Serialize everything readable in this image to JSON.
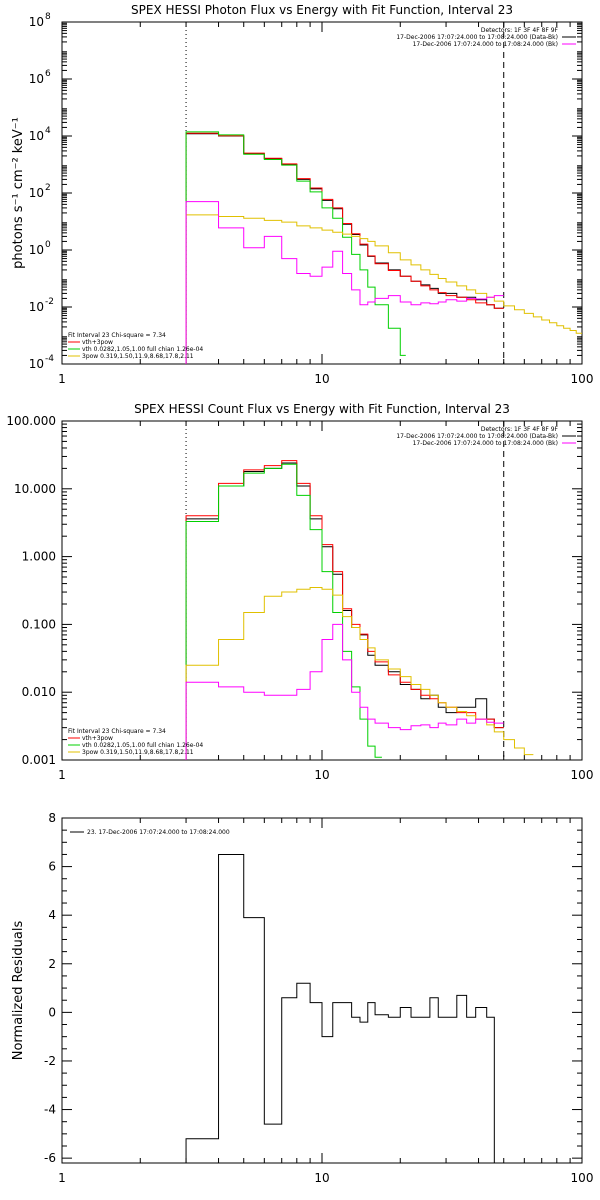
{
  "chart_data": [
    {
      "type": "line",
      "title": "SPEX HESSI Photon Flux vs Energy with Fit Function, Interval 23",
      "xlabel": "",
      "ylabel": "photons s⁻¹ cm⁻² keV⁻¹",
      "xscale": "log",
      "yscale": "log",
      "xlim": [
        1,
        100
      ],
      "ylim": [
        0.0001,
        100000000
      ],
      "xticks": [
        {
          "v": 1,
          "label": "1"
        },
        {
          "v": 10,
          "label": "10"
        },
        {
          "v": 100,
          "label": "100"
        }
      ],
      "yticks": [
        {
          "v": 0.0001,
          "base": "10",
          "exp": "-4"
        },
        {
          "v": 0.01,
          "base": "10",
          "exp": "-2"
        },
        {
          "v": 1,
          "base": "10",
          "exp": "0"
        },
        {
          "v": 100,
          "base": "10",
          "exp": "2"
        },
        {
          "v": 10000,
          "base": "10",
          "exp": "4"
        },
        {
          "v": 1000000,
          "base": "10",
          "exp": "6"
        },
        {
          "v": 100000000,
          "base": "10",
          "exp": "8"
        }
      ],
      "vlines": [
        {
          "x": 3,
          "style": "dotted"
        },
        {
          "x": 50,
          "style": "dashed"
        }
      ],
      "legend_top": {
        "placement": "top-right",
        "lines": [
          {
            "text": "Detectors: 1F 3F 4F 8F 9F",
            "color": ""
          },
          {
            "text": "17-Dec-2006 17:07:24.000 to 17:08:24.000 (Data-Bk)",
            "color": "#000000"
          },
          {
            "text": "17-Dec-2006 17:07:24.000 to 17:08:24.000 (Bk)",
            "color": "#ff00ff"
          }
        ]
      },
      "legend_bottom": {
        "placement": "bottom-left",
        "lines": [
          {
            "text": "Fit Interval 23   Chi-square = 7.34",
            "color": ""
          },
          {
            "text": "vth+3pow",
            "color": "#ff0000"
          },
          {
            "text": "vth 0.0282,1.05,1.00  full chian 1.26e-04",
            "color": "#00d000"
          },
          {
            "text": "3pow 0.319,1.50,11.9,8.68,17.8,2.11",
            "color": "#e0c000"
          }
        ]
      },
      "series": [
        {
          "color": "#000000",
          "edges": [
            3,
            4,
            5,
            6,
            7,
            8,
            9,
            10,
            11,
            12,
            13,
            14,
            15,
            16,
            18,
            20,
            22,
            24,
            26,
            28,
            30,
            33,
            36,
            39,
            43,
            46,
            50
          ],
          "values": [
            12000,
            10000,
            2400,
            1600,
            1000,
            300,
            140,
            55,
            28,
            8,
            3.5,
            1.5,
            0.6,
            0.35,
            0.2,
            0.12,
            0.08,
            0.06,
            0.045,
            0.03,
            0.03,
            0.022,
            0.022,
            0.018,
            0.012,
            0.009
          ]
        },
        {
          "color": "#ff0000",
          "edges": [
            3,
            4,
            5,
            6,
            7,
            8,
            9,
            10,
            11,
            12,
            13,
            14,
            15,
            16,
            18,
            20,
            22,
            24,
            26,
            28,
            30,
            33,
            36,
            39,
            43,
            46,
            50
          ],
          "values": [
            12500,
            10200,
            2500,
            1650,
            1050,
            320,
            150,
            60,
            30,
            8.5,
            3.7,
            1.6,
            0.62,
            0.33,
            0.19,
            0.12,
            0.08,
            0.055,
            0.04,
            0.032,
            0.025,
            0.022,
            0.018,
            0.014,
            0.012,
            0.009
          ]
        },
        {
          "color": "#00d000",
          "edges": [
            3,
            4,
            5,
            6,
            7,
            8,
            9,
            10,
            11,
            12,
            13,
            14,
            15,
            16,
            18,
            20,
            21
          ],
          "values": [
            14000,
            11000,
            2300,
            1500,
            950,
            260,
            110,
            30,
            13,
            2.8,
            0.7,
            0.2,
            0.05,
            0.012,
            0.0018,
            0.0002
          ]
        },
        {
          "color": "#e0c000",
          "edges": [
            3,
            4,
            5,
            6,
            7,
            8,
            9,
            10,
            11,
            12,
            13,
            14,
            15,
            16,
            18,
            20,
            22,
            24,
            26,
            28,
            30,
            33,
            36,
            39,
            43,
            46,
            50,
            55,
            60,
            65,
            70,
            75,
            80,
            85,
            90,
            95,
            100
          ],
          "values": [
            17,
            15,
            13,
            11,
            9.5,
            7,
            6,
            5,
            4.2,
            3.6,
            3,
            2.5,
            2,
            1.4,
            0.8,
            0.45,
            0.3,
            0.2,
            0.14,
            0.1,
            0.075,
            0.055,
            0.04,
            0.03,
            0.022,
            0.016,
            0.011,
            0.008,
            0.006,
            0.0045,
            0.0035,
            0.0028,
            0.0022,
            0.0018,
            0.0015,
            0.0012
          ]
        },
        {
          "color": "#ff00ff",
          "edges": [
            3,
            4,
            5,
            6,
            7,
            8,
            9,
            10,
            11,
            12,
            13,
            14,
            15,
            16,
            18,
            20,
            22,
            24,
            26,
            28,
            30,
            33,
            36,
            39,
            43,
            46,
            50
          ],
          "values": [
            50,
            6,
            1.2,
            3,
            0.5,
            0.15,
            0.12,
            0.25,
            0.9,
            0.15,
            0.04,
            0.012,
            0.015,
            0.02,
            0.025,
            0.015,
            0.012,
            0.014,
            0.013,
            0.015,
            0.018,
            0.016,
            0.02,
            0.019,
            0.022,
            0.025
          ]
        }
      ]
    },
    {
      "type": "line",
      "title": "SPEX HESSI Count Flux vs Energy with Fit Function, Interval 23",
      "xlabel": "",
      "ylabel": "",
      "xscale": "log",
      "yscale": "log",
      "xlim": [
        1,
        100
      ],
      "ylim": [
        0.001,
        100
      ],
      "xticks": [
        {
          "v": 1,
          "label": "1"
        },
        {
          "v": 10,
          "label": "10"
        },
        {
          "v": 100,
          "label": "100"
        }
      ],
      "yticks": [
        {
          "v": 0.001,
          "label": "0.001"
        },
        {
          "v": 0.01,
          "label": "0.010"
        },
        {
          "v": 0.1,
          "label": "0.100"
        },
        {
          "v": 1,
          "label": "1.000"
        },
        {
          "v": 10,
          "label": "10.000"
        },
        {
          "v": 100,
          "label": "100.000"
        }
      ],
      "vlines": [
        {
          "x": 3,
          "style": "dotted"
        },
        {
          "x": 50,
          "style": "dashed"
        }
      ],
      "legend_top": {
        "placement": "top-right",
        "lines": [
          {
            "text": "Detectors: 1F 3F 4F 8F 9F",
            "color": ""
          },
          {
            "text": "17-Dec-2006 17:07:24.000 to 17:08:24.000 (Data-Bk)",
            "color": "#000000"
          },
          {
            "text": "17-Dec-2006 17:07:24.000 to 17:08:24.000 (Bk)",
            "color": "#ff00ff"
          }
        ]
      },
      "legend_bottom": {
        "placement": "bottom-left",
        "lines": [
          {
            "text": "Fit Interval 23   Chi-square = 7.34",
            "color": ""
          },
          {
            "text": "vth+3pow",
            "color": "#ff0000"
          },
          {
            "text": "vth 0.0282,1.05,1.00  full chian 1.26e-04",
            "color": "#00d000"
          },
          {
            "text": "3pow 0.319,1.50,11.9,8.68,17.8,2.11",
            "color": "#e0c000"
          }
        ]
      },
      "series": [
        {
          "color": "#000000",
          "edges": [
            3,
            4,
            5,
            6,
            7,
            8,
            9,
            10,
            11,
            12,
            13,
            14,
            15,
            16,
            18,
            20,
            22,
            24,
            26,
            28,
            30,
            33,
            36,
            39,
            43,
            46,
            50
          ],
          "values": [
            3.6,
            11,
            18,
            20,
            24,
            11,
            3.6,
            1.4,
            0.55,
            0.16,
            0.09,
            0.07,
            0.035,
            0.025,
            0.02,
            0.013,
            0.011,
            0.008,
            0.009,
            0.006,
            0.005,
            0.006,
            0.006,
            0.008,
            0.004,
            0.003
          ]
        },
        {
          "color": "#ff0000",
          "edges": [
            3,
            4,
            5,
            6,
            7,
            8,
            9,
            10,
            11,
            12,
            13,
            14,
            15,
            16,
            18,
            20,
            22,
            24,
            26,
            28,
            30,
            33,
            36,
            39,
            43,
            46,
            50
          ],
          "values": [
            4,
            12,
            19,
            22,
            26,
            12,
            4,
            1.5,
            0.6,
            0.17,
            0.1,
            0.072,
            0.04,
            0.028,
            0.018,
            0.014,
            0.011,
            0.009,
            0.008,
            0.007,
            0.006,
            0.005,
            0.005,
            0.004,
            0.004,
            0.003
          ]
        },
        {
          "color": "#00d000",
          "edges": [
            3,
            4,
            5,
            6,
            7,
            8,
            9,
            10,
            11,
            12,
            13,
            14,
            15,
            16,
            17
          ],
          "values": [
            3.3,
            11,
            17,
            20,
            23,
            8,
            2.5,
            0.6,
            0.15,
            0.04,
            0.012,
            0.004,
            0.0016,
            0.0011
          ]
        },
        {
          "color": "#e0c000",
          "edges": [
            3,
            4,
            5,
            6,
            7,
            8,
            9,
            10,
            11,
            12,
            13,
            14,
            15,
            16,
            18,
            20,
            22,
            24,
            26,
            28,
            30,
            33,
            36,
            39,
            43,
            46,
            50,
            55,
            60,
            65
          ],
          "values": [
            0.025,
            0.06,
            0.15,
            0.26,
            0.3,
            0.33,
            0.35,
            0.33,
            0.27,
            0.13,
            0.09,
            0.06,
            0.045,
            0.03,
            0.022,
            0.017,
            0.013,
            0.011,
            0.009,
            0.007,
            0.006,
            0.0052,
            0.0045,
            0.004,
            0.0033,
            0.0026,
            0.002,
            0.0015,
            0.0012
          ]
        },
        {
          "color": "#ff00ff",
          "edges": [
            3,
            4,
            5,
            6,
            7,
            8,
            9,
            10,
            11,
            12,
            13,
            14,
            15,
            16,
            18,
            20,
            22,
            24,
            26,
            28,
            30,
            33,
            36,
            39,
            43,
            46,
            50
          ],
          "values": [
            0.014,
            0.012,
            0.01,
            0.009,
            0.009,
            0.011,
            0.02,
            0.06,
            0.1,
            0.03,
            0.01,
            0.006,
            0.004,
            0.0035,
            0.003,
            0.0028,
            0.0032,
            0.0033,
            0.003,
            0.0035,
            0.0033,
            0.004,
            0.0035,
            0.004,
            0.0036,
            0.0035
          ]
        }
      ]
    },
    {
      "type": "line",
      "title": "",
      "xlabel": "",
      "ylabel": "Normalized Residuals",
      "xscale": "log",
      "yscale": "linear",
      "xlim": [
        1,
        100
      ],
      "ylim": [
        -6.2,
        8
      ],
      "xticks": [
        {
          "v": 1,
          "label": "1"
        },
        {
          "v": 10,
          "label": "10"
        },
        {
          "v": 100,
          "label": "100"
        }
      ],
      "yticks": [
        {
          "v": -6,
          "label": "-6"
        },
        {
          "v": -4,
          "label": "-4"
        },
        {
          "v": -2,
          "label": "-2"
        },
        {
          "v": 0,
          "label": "0"
        },
        {
          "v": 2,
          "label": "2"
        },
        {
          "v": 4,
          "label": "4"
        },
        {
          "v": 6,
          "label": "6"
        },
        {
          "v": 8,
          "label": "8"
        }
      ],
      "legend_top": {
        "placement": "top-left",
        "lines": [
          {
            "text": "23. 17-Dec-2006 17:07:24.000 to 17:08:24.000",
            "color": "#000000",
            "swatch": true
          }
        ]
      },
      "series": [
        {
          "color": "#000000",
          "edges": [
            3,
            4,
            5,
            6,
            7,
            8,
            9,
            10,
            11,
            12,
            13,
            14,
            15,
            16,
            18,
            20,
            22,
            24,
            26,
            28,
            30,
            33,
            36,
            39,
            43,
            46,
            50
          ],
          "values": [
            -5.2,
            6.5,
            3.9,
            -4.6,
            0.6,
            1.2,
            0.4,
            -1.0,
            0.4,
            0.4,
            -0.2,
            -0.4,
            0.4,
            -0.1,
            -0.2,
            0.2,
            -0.2,
            -0.2,
            0.6,
            -0.2,
            -0.2,
            0.7,
            -0.2,
            0.2,
            -0.2,
            -6.2
          ],
          "close_to_baseline": true
        }
      ]
    }
  ]
}
